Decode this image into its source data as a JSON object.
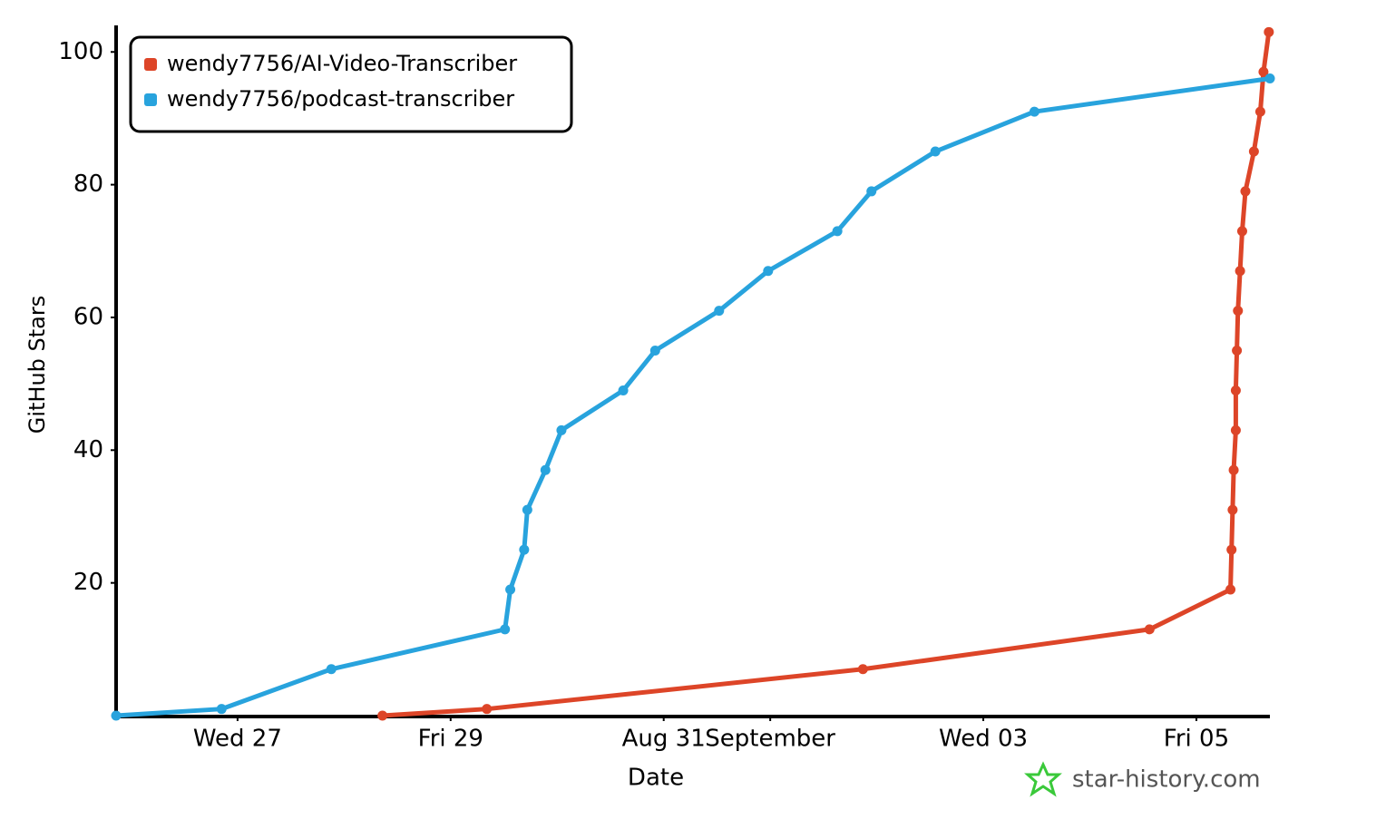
{
  "chart_data": {
    "type": "line",
    "x_label": "Date",
    "y_label": "GitHub Stars",
    "watermark": "star-history.com",
    "legend": "top-left",
    "xlim": [
      25.86,
      36.69
    ],
    "ylim": [
      0,
      104
    ],
    "xticks": [
      {
        "value": 27,
        "label": "Wed 27"
      },
      {
        "value": 29,
        "label": "Fri 29"
      },
      {
        "value": 31,
        "label": "Aug 31"
      },
      {
        "value": 32,
        "label": "September"
      },
      {
        "value": 34,
        "label": "Wed 03"
      },
      {
        "value": 36,
        "label": "Fri 05"
      }
    ],
    "yticks": [
      20,
      40,
      60,
      80,
      100
    ],
    "series": [
      {
        "name": "wendy7756/AI-Video-Transcriber",
        "color": "#dd4528",
        "x": [
          28.36,
          29.34,
          32.87,
          35.56,
          36.32,
          36.33,
          36.34,
          36.35,
          36.37,
          36.37,
          36.38,
          36.39,
          36.41,
          36.43,
          36.46,
          36.54,
          36.6,
          36.63,
          36.68
        ],
        "values": [
          0,
          1,
          7,
          13,
          19,
          25,
          31,
          37,
          43,
          49,
          55,
          61,
          67,
          73,
          79,
          85,
          91,
          97,
          103
        ]
      },
      {
        "name": "wendy7756/podcast-transcriber",
        "color": "#28a3dd",
        "x": [
          25.86,
          26.85,
          27.88,
          29.51,
          29.56,
          29.69,
          29.72,
          29.89,
          30.04,
          30.62,
          30.92,
          31.52,
          31.98,
          32.63,
          32.95,
          33.55,
          34.48,
          36.69
        ],
        "values": [
          0,
          1,
          7,
          13,
          19,
          25,
          31,
          37,
          43,
          49,
          55,
          61,
          67,
          73,
          79,
          85,
          91,
          96
        ]
      }
    ]
  }
}
